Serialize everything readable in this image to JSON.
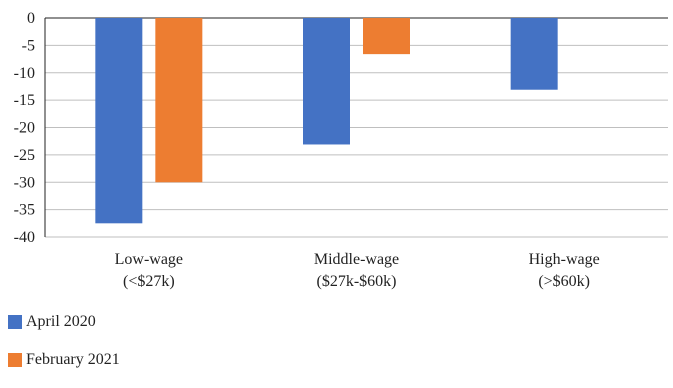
{
  "chart_data": {
    "type": "bar",
    "categories": [
      [
        "Low-wage",
        "(<$27k)"
      ],
      [
        "Middle-wage",
        "($27k-$60k)"
      ],
      [
        "High-wage",
        "(>$60k)"
      ]
    ],
    "series": [
      {
        "name": "April 2020",
        "color": "#4472C4",
        "values": [
          -37.5,
          -23.1,
          -13.1
        ]
      },
      {
        "name": "February 2021",
        "color": "#ED7D31",
        "values": [
          -30.0,
          -6.6,
          null
        ]
      }
    ],
    "ylim": [
      -40,
      0
    ],
    "yticks": [
      0,
      -5,
      -10,
      -15,
      -20,
      -25,
      -30,
      -35,
      -40
    ],
    "grid": true,
    "legend_position": "bottom-left"
  }
}
